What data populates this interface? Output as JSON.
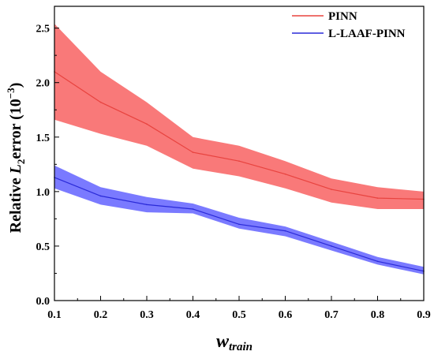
{
  "chart_data": {
    "type": "line",
    "x": [
      0.1,
      0.2,
      0.3,
      0.4,
      0.5,
      0.6,
      0.7,
      0.8,
      0.9
    ],
    "xlim": [
      0.1,
      0.9
    ],
    "ylim": [
      0.0,
      2.7
    ],
    "xticks": [
      "0.1",
      "0.2",
      "0.3",
      "0.4",
      "0.5",
      "0.6",
      "0.7",
      "0.8",
      "0.9"
    ],
    "yticks": [
      "0.0",
      "0.5",
      "1.0",
      "1.5",
      "2.0",
      "2.5"
    ],
    "xlabel": {
      "base": "w",
      "sub": "train"
    },
    "ylabel": {
      "pre": "Relative ",
      "italic": "L",
      "sub": "2",
      "post": "error  (10",
      "sup": "−3",
      "close": ")"
    },
    "grid": false,
    "legend_position": "top-right",
    "series": [
      {
        "name": "PINN",
        "color": "#e8433f",
        "fill": "#f86a6a",
        "mean": [
          2.1,
          1.82,
          1.62,
          1.36,
          1.28,
          1.16,
          1.02,
          0.94,
          0.93
        ],
        "upper": [
          2.54,
          2.1,
          1.82,
          1.5,
          1.42,
          1.28,
          1.12,
          1.04,
          1.0
        ],
        "lower": [
          1.66,
          1.53,
          1.42,
          1.21,
          1.14,
          1.03,
          0.9,
          0.84,
          0.84
        ]
      },
      {
        "name": "L-LAAF-PINN",
        "color": "#2a2ad8",
        "fill": "#6b6bff",
        "mean": [
          1.13,
          0.96,
          0.88,
          0.84,
          0.7,
          0.64,
          0.5,
          0.36,
          0.27
        ],
        "upper": [
          1.24,
          1.04,
          0.95,
          0.89,
          0.76,
          0.68,
          0.54,
          0.4,
          0.31
        ],
        "lower": [
          1.03,
          0.88,
          0.81,
          0.8,
          0.66,
          0.59,
          0.46,
          0.33,
          0.24
        ]
      }
    ]
  }
}
